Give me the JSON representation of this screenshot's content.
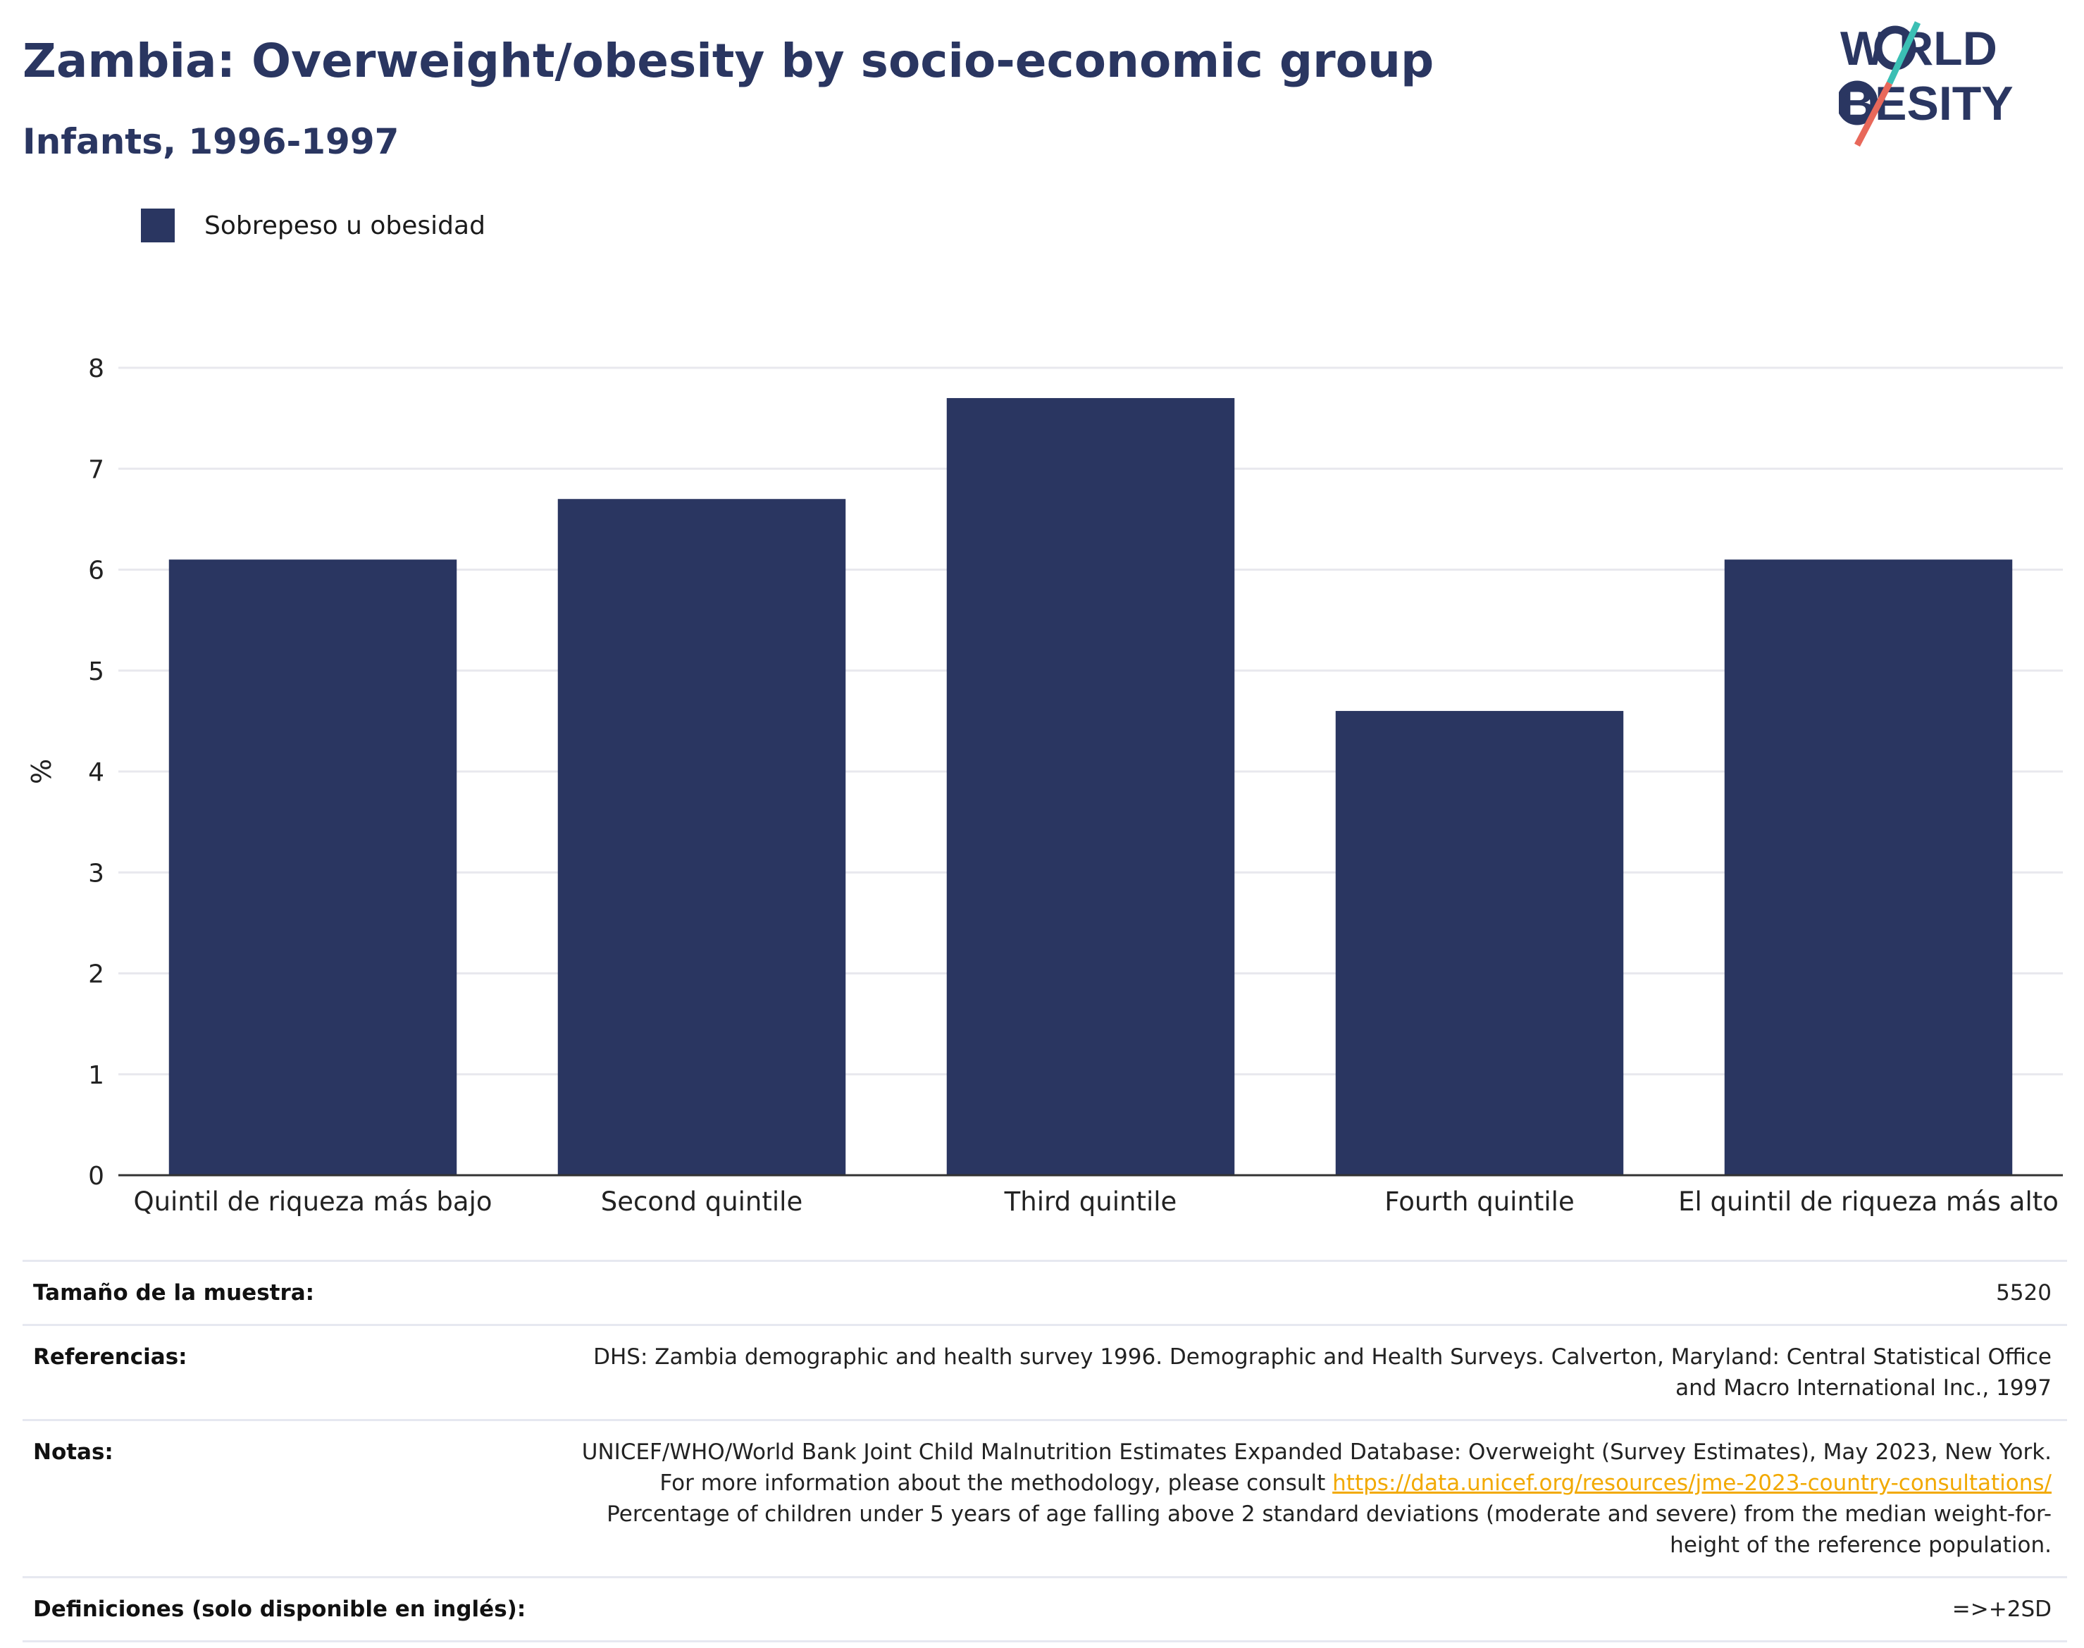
{
  "header": {
    "title": "Zambia: Overweight/obesity by socio-economic group",
    "subtitle": "Infants, 1996-1997"
  },
  "logo": {
    "line1": "W RLD",
    "line2": "BESITY",
    "colors": {
      "navy": "#2a3661",
      "teal": "#3bbfb4",
      "coral": "#e8685a"
    }
  },
  "colors": {
    "bar": "#2a3661",
    "grid": "#e8e8ee",
    "axis": "#333333",
    "link": "#f2a900"
  },
  "chart_data": {
    "type": "bar",
    "categories": [
      "Quintil de riqueza más bajo",
      "Second quintile",
      "Third quintile",
      "Fourth quintile",
      "El quintil de riqueza más alto"
    ],
    "series": [
      {
        "name": "Sobrepeso u obesidad",
        "values": [
          6.1,
          6.7,
          7.7,
          4.6,
          6.1
        ]
      }
    ],
    "ylabel": "%",
    "ylim": [
      0,
      8
    ],
    "yticks": [
      0,
      1,
      2,
      3,
      4,
      5,
      6,
      7,
      8
    ],
    "grid": true,
    "legend_position": "top-left"
  },
  "meta": {
    "sample_size": {
      "label": "Tamaño de la muestra:",
      "value": "5520"
    },
    "references": {
      "label": "Referencias:",
      "value": "DHS: Zambia demographic and health survey 1996. Demographic and Health Surveys. Calverton, Maryland: Central Statistical Office and Macro International Inc., 1997"
    },
    "notes": {
      "label": "Notas:",
      "text_before": "UNICEF/WHO/World Bank Joint Child Malnutrition Estimates Expanded Database: Overweight (Survey Estimates), May 2023, New York. For more information about the methodology, please consult ",
      "link": "https://data.unicef.org/resources/jme-2023-country-consultations/",
      "text_after": " Percentage of children under 5 years of age falling above 2 standard deviations (moderate and severe) from the median weight-for-height of the reference population."
    },
    "definitions": {
      "label": "Definiciones (solo disponible en inglés):",
      "value": "=>+2SD"
    }
  }
}
